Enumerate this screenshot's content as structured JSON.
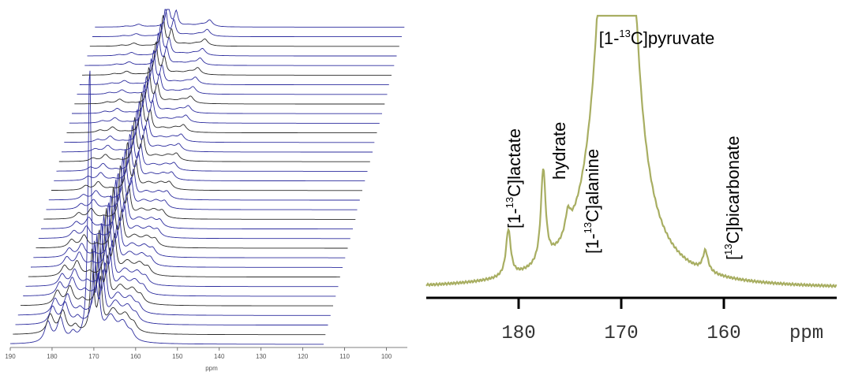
{
  "chart_data": [
    {
      "type": "line",
      "style": "stacked-waterfall",
      "xlabel": "ppm",
      "x_ticks": [
        190,
        180,
        170,
        160,
        150,
        140,
        130,
        120,
        110,
        100
      ],
      "xlim": [
        190,
        95
      ],
      "n_traces": 34,
      "x_reversed": true,
      "peaks_ppm": [
        181,
        178,
        175,
        171,
        169,
        163,
        161
      ],
      "colors": {
        "trace": "#2d2d9e",
        "axis": "#555555"
      }
    },
    {
      "type": "line",
      "xlabel": "ppm",
      "x_ticks": [
        180,
        170,
        160
      ],
      "xlim": [
        189,
        149
      ],
      "x_reversed": true,
      "colors": {
        "line": "#a8ae62",
        "axis": "#000000"
      },
      "peaks": [
        {
          "ppm": 181.0,
          "height": 0.18
        },
        {
          "ppm": 177.6,
          "height": 0.36
        },
        {
          "ppm": 175.2,
          "height": 0.08
        },
        {
          "ppm": 170.6,
          "height": 1.0
        },
        {
          "ppm": 161.8,
          "height": 0.08
        }
      ],
      "annotations": [
        {
          "prefix": "[1-",
          "sup": "13",
          "suffix": "C]pyruvate"
        },
        {
          "prefix": "[1-",
          "sup": "13",
          "suffix": "C]lactate"
        },
        {
          "prefix": "",
          "sup": "",
          "suffix": "hydrate"
        },
        {
          "prefix": "[1-",
          "sup": "13",
          "suffix": "C]alanine"
        },
        {
          "prefix": "[",
          "sup": "13",
          "suffix": "C]bicarbonate"
        }
      ]
    }
  ]
}
